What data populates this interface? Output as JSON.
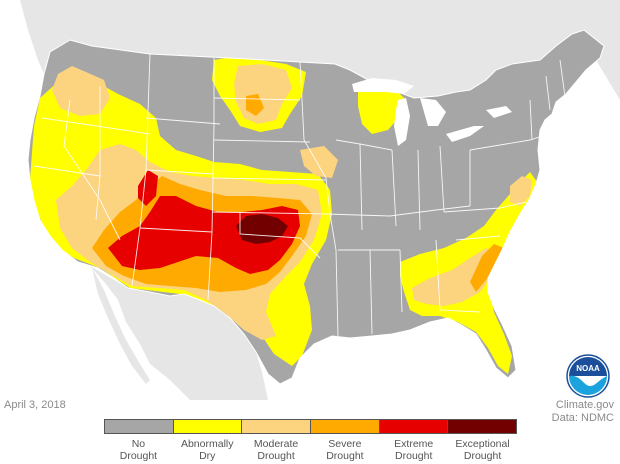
{
  "map": {
    "date": "April 3, 2018",
    "credit_line1": "Climate.gov",
    "credit_line2": "Data: NDMC",
    "logo_text": "NOAA",
    "colors": {
      "ocean": "#ffffff",
      "neighbor_land": "#e6e6e6",
      "no_drought": "#a6a6a6",
      "abnormally_dry": "#ffff00",
      "moderate": "#fcd37f",
      "severe": "#ffaa00",
      "extreme": "#e60000",
      "exceptional": "#730000",
      "state_lines": "#ffffff"
    }
  },
  "legend": [
    {
      "line1": "No",
      "line2": "Drought",
      "color": "#a6a6a6"
    },
    {
      "line1": "Abnormally",
      "line2": "Dry",
      "color": "#ffff00"
    },
    {
      "line1": "Moderate",
      "line2": "Drought",
      "color": "#fcd37f"
    },
    {
      "line1": "Severe",
      "line2": "Drought",
      "color": "#ffaa00"
    },
    {
      "line1": "Extreme",
      "line2": "Drought",
      "color": "#e60000"
    },
    {
      "line1": "Exceptional",
      "line2": "Drought",
      "color": "#730000"
    }
  ]
}
